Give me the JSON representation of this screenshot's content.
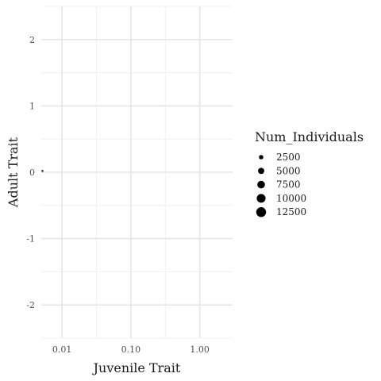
{
  "chart_data": {
    "type": "scatter",
    "xlabel": "Juvenile Trait",
    "ylabel": "Adult Trait",
    "x_scale": "log10",
    "xlim": [
      0.005,
      3
    ],
    "ylim": [
      -2.5,
      2.5
    ],
    "x_ticks": [
      {
        "value": 0.01,
        "label": "0.01"
      },
      {
        "value": 0.1,
        "label": "0.10"
      },
      {
        "value": 1,
        "label": "1.00"
      }
    ],
    "y_ticks": [
      {
        "value": 2,
        "label": "2"
      },
      {
        "value": 1,
        "label": "1"
      },
      {
        "value": 0,
        "label": "0"
      },
      {
        "value": -1,
        "label": "-1"
      },
      {
        "value": -2,
        "label": "-2"
      }
    ],
    "grid": true,
    "points": [
      {
        "x": 0.0052,
        "y": 0.02,
        "size": 2500
      }
    ],
    "point_color": "#000000",
    "legend": {
      "title": "Num_Individuals",
      "placement": "right",
      "entries": [
        {
          "label": "2500",
          "value": 2500
        },
        {
          "label": "5000",
          "value": 5000
        },
        {
          "label": "7500",
          "value": 7500
        },
        {
          "label": "10000",
          "value": 10000
        },
        {
          "label": "12500",
          "value": 12500
        }
      ]
    }
  }
}
